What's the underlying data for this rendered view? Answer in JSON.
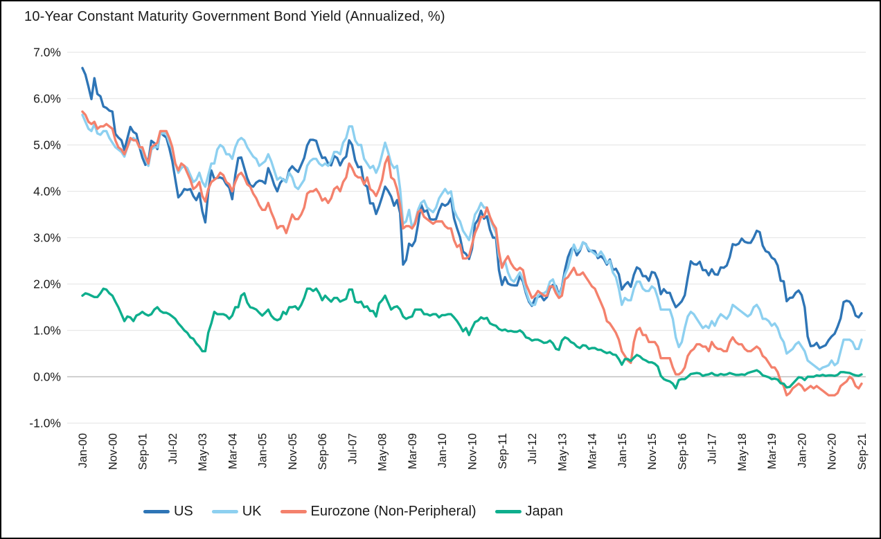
{
  "title": "10-Year Constant Maturity Government Bond Yield (Annualized, %)",
  "chart_data": {
    "type": "line",
    "title": "10-Year Constant Maturity Government Bond Yield (Annualized, %)",
    "xlabel": "",
    "ylabel": "",
    "x_start": "Jan-2000",
    "x_end": "Sep-2021",
    "frequency": "monthly",
    "x_tick_interval_months": 10,
    "x_tick_labels": [
      "Jan-00",
      "Nov-00",
      "Sep-01",
      "Jul-02",
      "May-03",
      "Mar-04",
      "Jan-05",
      "Nov-05",
      "Sep-06",
      "Jul-07",
      "May-08",
      "Mar-09",
      "Jan-10",
      "Nov-10",
      "Sep-11",
      "Jul-12",
      "May-13",
      "Mar-14",
      "Jan-15",
      "Nov-15",
      "Sep-16",
      "Jul-17",
      "May-18",
      "Mar-19",
      "Jan-20",
      "Nov-20",
      "Sep-21"
    ],
    "y_tick_labels": [
      "7.0%",
      "6.0%",
      "5.0%",
      "4.0%",
      "3.0%",
      "2.0%",
      "1.0%",
      "0.0%",
      "-1.0%"
    ],
    "ylim": [
      -1.0,
      7.0
    ],
    "y_step": 1.0,
    "grid": "horizontal-only",
    "gridline_color": "#e8e8e8",
    "zero_line_color": "#bfbfbf",
    "legend_position": "bottom",
    "series": [
      {
        "name": "US",
        "color": "#2e75b6",
        "values": [
          6.66,
          6.52,
          6.26,
          5.99,
          6.44,
          6.1,
          6.05,
          5.83,
          5.8,
          5.74,
          5.72,
          5.24,
          5.16,
          5.1,
          4.89,
          5.14,
          5.39,
          5.28,
          5.24,
          4.97,
          4.73,
          4.57,
          4.65,
          5.09,
          5.04,
          4.91,
          5.28,
          5.21,
          5.16,
          4.93,
          4.65,
          4.26,
          3.87,
          3.94,
          4.05,
          4.03,
          4.05,
          3.9,
          3.81,
          3.96,
          3.57,
          3.33,
          3.98,
          4.45,
          4.27,
          4.29,
          4.3,
          4.27,
          4.15,
          4.08,
          3.83,
          4.35,
          4.72,
          4.73,
          4.5,
          4.28,
          4.13,
          4.1,
          4.19,
          4.23,
          4.22,
          4.17,
          4.5,
          4.34,
          4.14,
          4.0,
          4.18,
          4.26,
          4.2,
          4.46,
          4.54,
          4.47,
          4.42,
          4.57,
          4.72,
          4.99,
          5.11,
          5.11,
          5.09,
          4.88,
          4.72,
          4.73,
          4.6,
          4.56,
          4.76,
          4.72,
          4.56,
          4.69,
          4.75,
          5.1,
          5.0,
          4.67,
          4.52,
          4.53,
          4.15,
          4.1,
          3.74,
          3.74,
          3.51,
          3.68,
          3.88,
          4.1,
          4.01,
          3.89,
          3.69,
          3.81,
          3.53,
          2.42,
          2.52,
          2.87,
          2.82,
          2.93,
          3.29,
          3.72,
          3.56,
          3.59,
          3.4,
          3.39,
          3.4,
          3.59,
          3.73,
          3.69,
          3.73,
          3.85,
          3.42,
          3.2,
          3.01,
          2.7,
          2.65,
          2.54,
          2.76,
          3.29,
          3.39,
          3.58,
          3.41,
          3.46,
          3.17,
          3.0,
          3.0,
          2.3,
          1.98,
          2.15,
          2.01,
          1.98,
          1.97,
          1.97,
          2.17,
          2.05,
          1.8,
          1.62,
          1.53,
          1.68,
          1.72,
          1.75,
          1.65,
          1.72,
          1.91,
          1.98,
          1.96,
          1.76,
          1.93,
          2.3,
          2.58,
          2.74,
          2.81,
          2.62,
          2.72,
          2.9,
          2.86,
          2.71,
          2.72,
          2.71,
          2.56,
          2.6,
          2.54,
          2.42,
          2.53,
          2.3,
          2.33,
          2.21,
          1.88,
          1.98,
          2.04,
          1.94,
          2.2,
          2.36,
          2.32,
          2.17,
          2.17,
          2.07,
          2.26,
          2.24,
          2.09,
          1.78,
          1.89,
          1.81,
          1.81,
          1.64,
          1.5,
          1.56,
          1.63,
          1.76,
          2.14,
          2.49,
          2.43,
          2.42,
          2.48,
          2.3,
          2.3,
          2.19,
          2.32,
          2.21,
          2.2,
          2.36,
          2.35,
          2.4,
          2.58,
          2.86,
          2.84,
          2.87,
          2.98,
          2.91,
          2.89,
          2.89,
          3.0,
          3.15,
          3.12,
          2.83,
          2.71,
          2.68,
          2.57,
          2.53,
          2.4,
          2.07,
          2.06,
          1.63,
          1.7,
          1.71,
          1.81,
          1.86,
          1.76,
          1.5,
          0.87,
          0.66,
          0.67,
          0.73,
          0.62,
          0.65,
          0.68,
          0.79,
          0.87,
          0.93,
          1.08,
          1.26,
          1.61,
          1.64,
          1.62,
          1.52,
          1.32,
          1.28,
          1.37
        ]
      },
      {
        "name": "UK",
        "color": "#8dd0f0",
        "values": [
          5.65,
          5.5,
          5.35,
          5.3,
          5.45,
          5.25,
          5.22,
          5.3,
          5.3,
          5.15,
          5.05,
          4.95,
          4.9,
          4.85,
          4.75,
          4.95,
          5.1,
          5.15,
          5.1,
          4.95,
          4.9,
          4.7,
          4.55,
          4.9,
          4.95,
          4.95,
          5.25,
          5.25,
          5.25,
          5.05,
          4.9,
          4.6,
          4.4,
          4.5,
          4.55,
          4.5,
          4.35,
          4.2,
          4.25,
          4.4,
          4.2,
          4.1,
          4.35,
          4.6,
          4.6,
          4.9,
          5.0,
          4.95,
          4.8,
          4.8,
          4.7,
          4.95,
          5.1,
          5.15,
          5.1,
          4.95,
          4.85,
          4.75,
          4.7,
          4.55,
          4.6,
          4.65,
          4.8,
          4.65,
          4.45,
          4.25,
          4.3,
          4.25,
          4.2,
          4.4,
          4.3,
          4.1,
          4.05,
          4.15,
          4.25,
          4.55,
          4.65,
          4.7,
          4.7,
          4.6,
          4.55,
          4.6,
          4.55,
          4.65,
          4.85,
          4.85,
          4.8,
          5.05,
          5.15,
          5.4,
          5.4,
          5.1,
          5.0,
          5.0,
          4.7,
          4.6,
          4.5,
          4.55,
          4.4,
          4.55,
          4.8,
          5.05,
          4.85,
          4.6,
          4.5,
          4.55,
          4.05,
          3.3,
          3.35,
          3.6,
          3.2,
          3.35,
          3.6,
          3.75,
          3.8,
          3.65,
          3.6,
          3.55,
          3.65,
          3.85,
          3.95,
          4.05,
          3.95,
          4.0,
          3.6,
          3.45,
          3.35,
          3.15,
          3.05,
          2.95,
          3.2,
          3.5,
          3.6,
          3.75,
          3.65,
          3.65,
          3.4,
          3.25,
          3.1,
          2.6,
          2.4,
          2.5,
          2.25,
          2.1,
          2.05,
          2.15,
          2.25,
          2.1,
          1.85,
          1.65,
          1.55,
          1.55,
          1.75,
          1.8,
          1.8,
          1.85,
          2.05,
          2.1,
          1.9,
          1.75,
          1.9,
          2.2,
          2.35,
          2.6,
          2.85,
          2.7,
          2.75,
          2.9,
          2.85,
          2.75,
          2.7,
          2.65,
          2.6,
          2.7,
          2.6,
          2.45,
          2.5,
          2.25,
          2.15,
          1.9,
          1.55,
          1.7,
          1.65,
          1.65,
          1.9,
          2.05,
          2.05,
          1.9,
          1.85,
          1.85,
          1.95,
          1.9,
          1.7,
          1.45,
          1.45,
          1.45,
          1.45,
          1.25,
          0.85,
          0.64,
          0.75,
          1.05,
          1.3,
          1.4,
          1.35,
          1.25,
          1.15,
          1.05,
          1.1,
          1.05,
          1.2,
          1.1,
          1.25,
          1.35,
          1.3,
          1.25,
          1.35,
          1.55,
          1.5,
          1.45,
          1.4,
          1.35,
          1.3,
          1.35,
          1.5,
          1.55,
          1.45,
          1.25,
          1.25,
          1.2,
          1.1,
          1.15,
          1.05,
          0.85,
          0.75,
          0.5,
          0.55,
          0.6,
          0.7,
          0.75,
          0.65,
          0.55,
          0.35,
          0.3,
          0.25,
          0.2,
          0.15,
          0.2,
          0.22,
          0.25,
          0.35,
          0.25,
          0.3,
          0.55,
          0.8,
          0.8,
          0.8,
          0.75,
          0.6,
          0.6,
          0.8
        ]
      },
      {
        "name": "Eurozone (Non-Peripheral)",
        "color": "#f4816c",
        "values": [
          5.72,
          5.65,
          5.5,
          5.45,
          5.5,
          5.35,
          5.4,
          5.4,
          5.45,
          5.4,
          5.35,
          5.1,
          4.95,
          4.9,
          4.8,
          4.95,
          5.15,
          5.1,
          5.1,
          4.95,
          4.95,
          4.75,
          4.6,
          4.95,
          5.0,
          5.05,
          5.3,
          5.3,
          5.3,
          5.15,
          4.95,
          4.6,
          4.45,
          4.6,
          4.55,
          4.4,
          4.25,
          4.05,
          4.1,
          4.2,
          3.9,
          3.78,
          4.05,
          4.2,
          4.25,
          4.3,
          4.4,
          4.35,
          4.2,
          4.15,
          4.0,
          4.2,
          4.35,
          4.4,
          4.3,
          4.15,
          4.1,
          3.95,
          3.85,
          3.7,
          3.6,
          3.6,
          3.75,
          3.55,
          3.4,
          3.2,
          3.25,
          3.25,
          3.1,
          3.3,
          3.5,
          3.4,
          3.4,
          3.5,
          3.65,
          3.95,
          4.0,
          4.0,
          4.05,
          3.95,
          3.8,
          3.85,
          3.75,
          3.85,
          4.05,
          4.1,
          4.0,
          4.2,
          4.3,
          4.6,
          4.5,
          4.35,
          4.3,
          4.3,
          4.15,
          4.3,
          4.05,
          4.0,
          3.9,
          4.05,
          4.25,
          4.6,
          4.75,
          4.3,
          4.25,
          4.05,
          3.7,
          3.2,
          3.25,
          3.25,
          3.2,
          3.3,
          3.55,
          3.6,
          3.45,
          3.4,
          3.35,
          3.3,
          3.35,
          3.35,
          3.35,
          3.25,
          3.2,
          3.2,
          2.95,
          2.8,
          2.85,
          2.55,
          2.55,
          2.6,
          2.85,
          3.1,
          3.25,
          3.45,
          3.45,
          3.65,
          3.45,
          3.3,
          3.2,
          2.7,
          2.35,
          2.5,
          2.6,
          2.45,
          2.35,
          2.3,
          2.35,
          2.3,
          2.0,
          1.85,
          1.7,
          1.75,
          1.85,
          1.8,
          1.75,
          1.75,
          1.95,
          1.95,
          1.8,
          1.7,
          1.75,
          2.1,
          2.15,
          2.25,
          2.35,
          2.2,
          2.2,
          2.25,
          2.15,
          2.05,
          1.95,
          1.9,
          1.75,
          1.6,
          1.45,
          1.2,
          1.15,
          1.05,
          0.95,
          0.8,
          0.55,
          0.45,
          0.35,
          0.3,
          0.75,
          1.0,
          1.05,
          0.9,
          0.9,
          0.75,
          0.75,
          0.75,
          0.65,
          0.4,
          0.4,
          0.4,
          0.4,
          0.2,
          0.05,
          0.05,
          0.1,
          0.2,
          0.45,
          0.55,
          0.6,
          0.7,
          0.7,
          0.65,
          0.65,
          0.55,
          0.75,
          0.65,
          0.6,
          0.6,
          0.55,
          0.55,
          0.75,
          0.85,
          0.75,
          0.7,
          0.7,
          0.6,
          0.55,
          0.55,
          0.6,
          0.65,
          0.6,
          0.45,
          0.4,
          0.3,
          0.2,
          0.2,
          0.1,
          -0.1,
          -0.2,
          -0.4,
          -0.35,
          -0.25,
          -0.2,
          -0.15,
          -0.2,
          -0.3,
          -0.25,
          -0.2,
          -0.25,
          -0.2,
          -0.25,
          -0.3,
          -0.35,
          -0.4,
          -0.4,
          -0.4,
          -0.35,
          -0.2,
          -0.15,
          -0.1,
          0.0,
          -0.05,
          -0.2,
          -0.25,
          -0.15
        ]
      },
      {
        "name": "Japan",
        "color": "#0eae8d",
        "values": [
          1.75,
          1.8,
          1.78,
          1.75,
          1.72,
          1.72,
          1.8,
          1.9,
          1.88,
          1.8,
          1.75,
          1.62,
          1.5,
          1.35,
          1.2,
          1.3,
          1.28,
          1.2,
          1.32,
          1.35,
          1.4,
          1.35,
          1.32,
          1.35,
          1.45,
          1.5,
          1.42,
          1.38,
          1.38,
          1.35,
          1.3,
          1.25,
          1.15,
          1.08,
          1.0,
          0.95,
          0.85,
          0.82,
          0.72,
          0.65,
          0.55,
          0.55,
          0.95,
          1.15,
          1.4,
          1.35,
          1.35,
          1.35,
          1.32,
          1.25,
          1.32,
          1.5,
          1.5,
          1.75,
          1.8,
          1.6,
          1.5,
          1.48,
          1.45,
          1.38,
          1.32,
          1.38,
          1.45,
          1.32,
          1.25,
          1.22,
          1.25,
          1.4,
          1.35,
          1.5,
          1.5,
          1.52,
          1.45,
          1.55,
          1.7,
          1.9,
          1.9,
          1.85,
          1.9,
          1.8,
          1.65,
          1.75,
          1.68,
          1.62,
          1.7,
          1.7,
          1.62,
          1.65,
          1.68,
          1.88,
          1.88,
          1.62,
          1.6,
          1.62,
          1.5,
          1.52,
          1.42,
          1.42,
          1.3,
          1.58,
          1.65,
          1.75,
          1.6,
          1.45,
          1.5,
          1.52,
          1.45,
          1.3,
          1.25,
          1.28,
          1.3,
          1.45,
          1.45,
          1.45,
          1.35,
          1.35,
          1.32,
          1.35,
          1.35,
          1.28,
          1.33,
          1.33,
          1.35,
          1.35,
          1.28,
          1.2,
          1.1,
          0.98,
          1.05,
          0.9,
          1.05,
          1.18,
          1.21,
          1.28,
          1.25,
          1.27,
          1.15,
          1.12,
          1.1,
          1.03,
          1.0,
          1.02,
          0.98,
          0.99,
          0.97,
          0.97,
          1.0,
          0.95,
          0.85,
          0.83,
          0.78,
          0.8,
          0.8,
          0.77,
          0.73,
          0.74,
          0.78,
          0.72,
          0.6,
          0.58,
          0.78,
          0.85,
          0.82,
          0.75,
          0.72,
          0.65,
          0.62,
          0.68,
          0.67,
          0.6,
          0.62,
          0.62,
          0.58,
          0.58,
          0.54,
          0.51,
          0.53,
          0.48,
          0.47,
          0.38,
          0.26,
          0.38,
          0.38,
          0.34,
          0.41,
          0.47,
          0.44,
          0.38,
          0.35,
          0.31,
          0.31,
          0.28,
          0.22,
          0.02,
          -0.05,
          -0.08,
          -0.1,
          -0.15,
          -0.25,
          -0.07,
          -0.05,
          -0.05,
          0.0,
          0.06,
          0.07,
          0.08,
          0.07,
          0.02,
          0.04,
          0.05,
          0.08,
          0.04,
          0.03,
          0.06,
          0.04,
          0.05,
          0.08,
          0.06,
          0.04,
          0.04,
          0.05,
          0.04,
          0.08,
          0.1,
          0.12,
          0.14,
          0.1,
          0.03,
          0.01,
          -0.01,
          -0.05,
          -0.04,
          -0.06,
          -0.14,
          -0.15,
          -0.23,
          -0.22,
          -0.15,
          -0.08,
          -0.01,
          -0.02,
          -0.07,
          0.0,
          0.0,
          0.0,
          0.03,
          0.02,
          0.04,
          0.02,
          0.03,
          0.03,
          0.02,
          0.04,
          0.1,
          0.1,
          0.09,
          0.08,
          0.05,
          0.03,
          0.02,
          0.05
        ]
      }
    ]
  }
}
